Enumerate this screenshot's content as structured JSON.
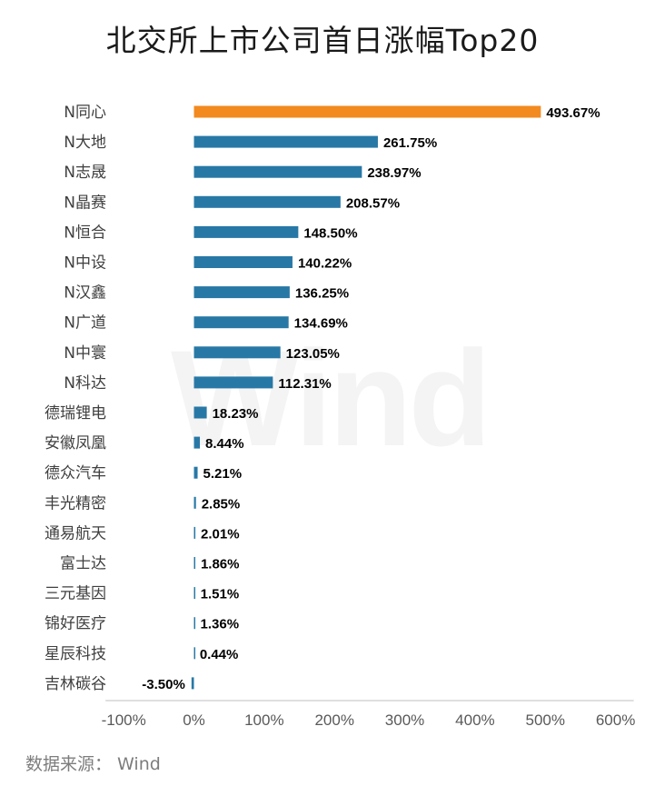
{
  "title": "北交所上市公司首日涨幅Top20",
  "source": "数据来源： Wind",
  "watermark": "Wind",
  "colors": {
    "highlight": "#F28A1F",
    "bar": "#2878A6",
    "axis": "#BFBFBF",
    "tick_text": "#595959",
    "category_text": "#404040",
    "value_text": "#000000"
  },
  "chart_data": {
    "type": "bar",
    "orientation": "horizontal",
    "title": "北交所上市公司首日涨幅Top20",
    "xlabel": "",
    "ylabel": "",
    "xlim": [
      -100,
      600
    ],
    "grid": false,
    "highlight_index": 0,
    "categories": [
      "N同心",
      "N大地",
      "N志晟",
      "N晶赛",
      "N恒合",
      "N中设",
      "N汉鑫",
      "N广道",
      "N中寰",
      "N科达",
      "德瑞锂电",
      "安徽凤凰",
      "德众汽车",
      "丰光精密",
      "通易航天",
      "富士达",
      "三元基因",
      "锦好医疗",
      "星辰科技",
      "吉林碳谷"
    ],
    "values": [
      493.67,
      261.75,
      238.97,
      208.57,
      148.5,
      140.22,
      136.25,
      134.69,
      123.05,
      112.31,
      18.23,
      8.44,
      5.21,
      2.85,
      2.01,
      1.86,
      1.51,
      1.36,
      0.44,
      -3.5
    ],
    "value_labels": [
      "493.67%",
      "261.75%",
      "238.97%",
      "208.57%",
      "148.50%",
      "140.22%",
      "136.25%",
      "134.69%",
      "123.05%",
      "112.31%",
      "18.23%",
      "8.44%",
      "5.21%",
      "2.85%",
      "2.01%",
      "1.86%",
      "1.51%",
      "1.36%",
      "0.44%",
      "-3.50%"
    ],
    "x_ticks": [
      -100,
      0,
      100,
      200,
      300,
      400,
      500,
      600
    ],
    "x_tick_labels": [
      "-100%",
      "0%",
      "100%",
      "200%",
      "300%",
      "400%",
      "500%",
      "600%"
    ]
  }
}
